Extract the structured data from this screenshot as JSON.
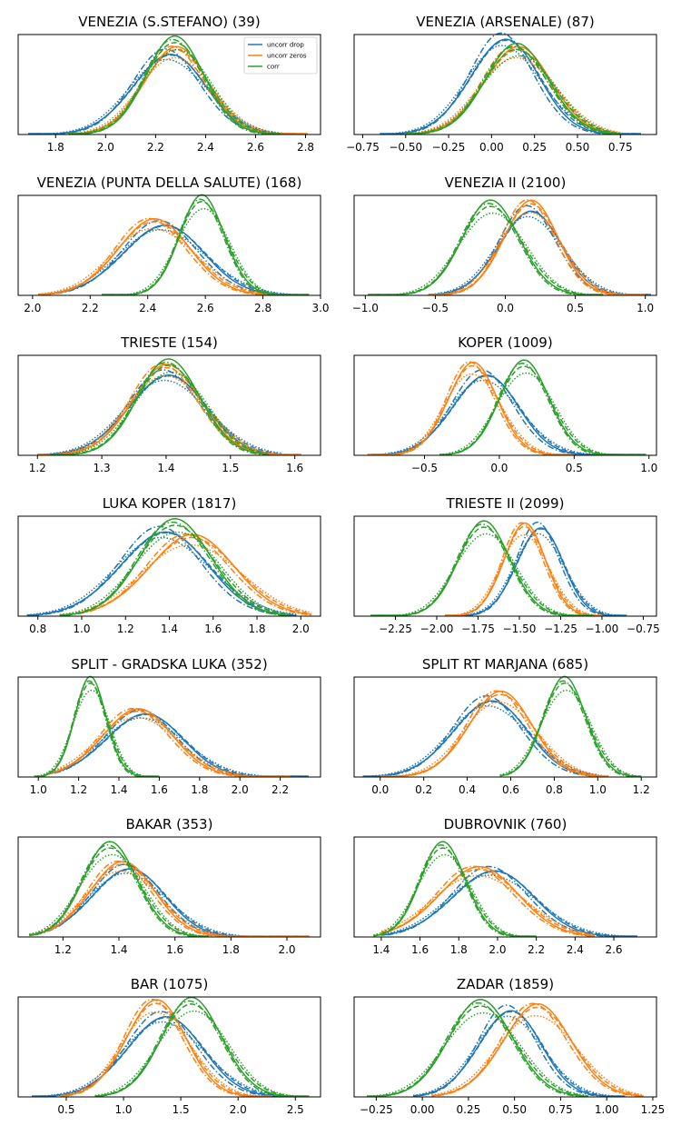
{
  "figure": {
    "legend": {
      "placement": "upper-right of first panel",
      "entries": [
        {
          "label": "uncorr drop",
          "color": "#1f77b4"
        },
        {
          "label": "uncorr zeros",
          "color": "#ff7f0e"
        },
        {
          "label": "corr",
          "color": "#2ca02c"
        }
      ]
    },
    "line_styles": [
      "solid",
      "dashed",
      "dashdot",
      "dotted"
    ]
  },
  "chart_data": [
    {
      "type": "line",
      "title": "VENEZIA (S.STEFANO) (39)",
      "xlim": [
        1.65,
        2.86
      ],
      "xticks": [
        1.8,
        2.0,
        2.2,
        2.4,
        2.6,
        2.8
      ],
      "xtick_labels": [
        "1.8",
        "2.0",
        "2.2",
        "2.4",
        "2.6",
        "2.8"
      ],
      "grid": false,
      "series": [
        {
          "name": "uncorr drop",
          "color": "#1f77b4",
          "peak_x": 2.25,
          "sd": 0.145,
          "height": 0.8,
          "range": [
            1.69,
            2.76
          ]
        },
        {
          "name": "uncorr zeros",
          "color": "#ff7f0e",
          "peak_x": 2.28,
          "sd": 0.13,
          "height": 0.85,
          "range": [
            1.85,
            2.81
          ]
        },
        {
          "name": "corr",
          "color": "#2ca02c",
          "peak_x": 2.28,
          "sd": 0.12,
          "height": 0.95,
          "range": [
            1.85,
            2.7
          ]
        }
      ]
    },
    {
      "type": "line",
      "title": "VENEZIA (ARSENALE) (87)",
      "xlim": [
        -0.8,
        0.96
      ],
      "xticks": [
        -0.75,
        -0.5,
        -0.25,
        0.0,
        0.25,
        0.5,
        0.75
      ],
      "xtick_labels": [
        "−0.75",
        "−0.50",
        "−0.25",
        "0.00",
        "0.25",
        "0.50",
        "0.75"
      ],
      "grid": false,
      "series": [
        {
          "name": "uncorr drop",
          "color": "#1f77b4",
          "peak_x": 0.07,
          "sd": 0.2,
          "height": 0.95,
          "range": [
            -0.65,
            0.87
          ]
        },
        {
          "name": "uncorr zeros",
          "color": "#ff7f0e",
          "peak_x": 0.15,
          "sd": 0.2,
          "height": 0.85,
          "range": [
            -0.5,
            0.75
          ]
        },
        {
          "name": "corr",
          "color": "#2ca02c",
          "peak_x": 0.15,
          "sd": 0.19,
          "height": 0.88,
          "range": [
            -0.5,
            0.75
          ]
        }
      ]
    },
    {
      "type": "line",
      "title": "VENEZIA (PUNTA DELLA SALUTE) (168)",
      "xlim": [
        1.95,
        3.0
      ],
      "xticks": [
        2.0,
        2.2,
        2.4,
        2.6,
        2.8,
        3.0
      ],
      "xtick_labels": [
        "2.0",
        "2.2",
        "2.4",
        "2.6",
        "2.8",
        "3.0"
      ],
      "grid": false,
      "series": [
        {
          "name": "uncorr drop",
          "color": "#1f77b4",
          "peak_x": 2.45,
          "sd": 0.14,
          "height": 0.7,
          "range": [
            2.02,
            2.9
          ]
        },
        {
          "name": "uncorr zeros",
          "color": "#ff7f0e",
          "peak_x": 2.42,
          "sd": 0.13,
          "height": 0.74,
          "range": [
            2.02,
            2.85
          ]
        },
        {
          "name": "corr",
          "color": "#2ca02c",
          "peak_x": 2.59,
          "sd": 0.08,
          "height": 0.97,
          "range": [
            2.24,
            2.96
          ]
        }
      ]
    },
    {
      "type": "line",
      "title": "VENEZIA II (2100)",
      "xlim": [
        -1.08,
        1.08
      ],
      "xticks": [
        -1.0,
        -0.5,
        0.0,
        0.5,
        1.0
      ],
      "xtick_labels": [
        "−1.0",
        "−0.5",
        "0.0",
        "0.5",
        "1.0"
      ],
      "grid": false,
      "series": [
        {
          "name": "uncorr drop",
          "color": "#1f77b4",
          "peak_x": 0.17,
          "sd": 0.22,
          "height": 0.84,
          "range": [
            -0.55,
            1.04
          ]
        },
        {
          "name": "uncorr zeros",
          "color": "#ff7f0e",
          "peak_x": 0.18,
          "sd": 0.2,
          "height": 0.92,
          "range": [
            -0.55,
            1.0
          ]
        },
        {
          "name": "corr",
          "color": "#2ca02c",
          "peak_x": -0.1,
          "sd": 0.21,
          "height": 0.92,
          "range": [
            -0.98,
            0.7
          ]
        }
      ]
    },
    {
      "type": "line",
      "title": "TRIESTE (154)",
      "xlim": [
        1.17,
        1.64
      ],
      "xticks": [
        1.2,
        1.3,
        1.4,
        1.5,
        1.6
      ],
      "xtick_labels": [
        "1.2",
        "1.3",
        "1.4",
        "1.5",
        "1.6"
      ],
      "grid": false,
      "series": [
        {
          "name": "uncorr drop",
          "color": "#1f77b4",
          "peak_x": 1.4,
          "sd": 0.06,
          "height": 0.8,
          "range": [
            1.2,
            1.58
          ]
        },
        {
          "name": "uncorr zeros",
          "color": "#ff7f0e",
          "peak_x": 1.4,
          "sd": 0.055,
          "height": 0.88,
          "range": [
            1.2,
            1.61
          ]
        },
        {
          "name": "corr",
          "color": "#2ca02c",
          "peak_x": 1.405,
          "sd": 0.05,
          "height": 0.93,
          "range": [
            1.22,
            1.56
          ]
        }
      ]
    },
    {
      "type": "line",
      "title": "KOPER (1009)",
      "xlim": [
        -0.97,
        1.05
      ],
      "xticks": [
        -0.5,
        0.0,
        0.5,
        1.0
      ],
      "xtick_labels": [
        "−0.5",
        "0.0",
        "0.5",
        "1.0"
      ],
      "grid": false,
      "series": [
        {
          "name": "uncorr drop",
          "color": "#1f77b4",
          "peak_x": -0.1,
          "sd": 0.22,
          "height": 0.8,
          "range": [
            -0.85,
            0.8
          ]
        },
        {
          "name": "uncorr zeros",
          "color": "#ff7f0e",
          "peak_x": -0.18,
          "sd": 0.17,
          "height": 0.9,
          "range": [
            -0.88,
            0.5
          ]
        },
        {
          "name": "corr",
          "color": "#2ca02c",
          "peak_x": 0.17,
          "sd": 0.17,
          "height": 0.92,
          "range": [
            -0.4,
            0.98
          ]
        }
      ]
    },
    {
      "type": "line",
      "title": "LUKA KOPER (1817)",
      "xlim": [
        0.71,
        2.09
      ],
      "xticks": [
        0.8,
        1.0,
        1.2,
        1.4,
        1.6,
        1.8,
        2.0
      ],
      "xtick_labels": [
        "0.8",
        "1.0",
        "1.2",
        "1.4",
        "1.6",
        "1.8",
        "2.0"
      ],
      "grid": false,
      "series": [
        {
          "name": "uncorr drop",
          "color": "#1f77b4",
          "peak_x": 1.37,
          "sd": 0.2,
          "height": 0.84,
          "range": [
            0.75,
            1.98
          ]
        },
        {
          "name": "uncorr zeros",
          "color": "#ff7f0e",
          "peak_x": 1.5,
          "sd": 0.2,
          "height": 0.79,
          "range": [
            0.9,
            2.05
          ]
        },
        {
          "name": "corr",
          "color": "#2ca02c",
          "peak_x": 1.43,
          "sd": 0.17,
          "height": 0.94,
          "range": [
            0.9,
            1.95
          ]
        }
      ]
    },
    {
      "type": "line",
      "title": "TRIESTE II (2099)",
      "xlim": [
        -2.5,
        -0.67
      ],
      "xticks": [
        -2.25,
        -2.0,
        -1.75,
        -1.5,
        -1.25,
        -1.0,
        -0.75
      ],
      "xtick_labels": [
        "−2.25",
        "−2.00",
        "−1.75",
        "−1.50",
        "−1.25",
        "−1.00",
        "−0.75"
      ],
      "grid": false,
      "series": [
        {
          "name": "uncorr drop",
          "color": "#1f77b4",
          "peak_x": -1.38,
          "sd": 0.14,
          "height": 0.88,
          "range": [
            -1.95,
            -0.85
          ]
        },
        {
          "name": "uncorr zeros",
          "color": "#ff7f0e",
          "peak_x": -1.47,
          "sd": 0.13,
          "height": 0.9,
          "range": [
            -1.95,
            -1.0
          ]
        },
        {
          "name": "corr",
          "color": "#2ca02c",
          "peak_x": -1.71,
          "sd": 0.16,
          "height": 0.92,
          "range": [
            -2.4,
            -1.05
          ]
        }
      ]
    },
    {
      "type": "line",
      "title": "SPLIT - GRADSKA LUKA (352)",
      "xlim": [
        0.9,
        2.4
      ],
      "xticks": [
        1.0,
        1.2,
        1.4,
        1.6,
        1.8,
        2.0,
        2.2
      ],
      "xtick_labels": [
        "1.0",
        "1.2",
        "1.4",
        "1.6",
        "1.8",
        "2.0",
        "2.2"
      ],
      "grid": false,
      "series": [
        {
          "name": "uncorr drop",
          "color": "#1f77b4",
          "peak_x": 1.52,
          "sd": 0.19,
          "height": 0.63,
          "range": [
            1.05,
            2.34
          ]
        },
        {
          "name": "uncorr zeros",
          "color": "#ff7f0e",
          "peak_x": 1.49,
          "sd": 0.18,
          "height": 0.66,
          "range": [
            1.05,
            2.25
          ]
        },
        {
          "name": "corr",
          "color": "#2ca02c",
          "peak_x": 1.26,
          "sd": 0.08,
          "height": 0.97,
          "range": [
            0.98,
            1.6
          ]
        }
      ]
    },
    {
      "type": "line",
      "title": "SPLIT RT MARJANA (685)",
      "xlim": [
        -0.12,
        1.27
      ],
      "xticks": [
        0.0,
        0.2,
        0.4,
        0.6,
        0.8,
        1.0,
        1.2
      ],
      "xtick_labels": [
        "0.0",
        "0.2",
        "0.4",
        "0.6",
        "0.8",
        "1.0",
        "1.2"
      ],
      "grid": false,
      "series": [
        {
          "name": "uncorr drop",
          "color": "#1f77b4",
          "peak_x": 0.5,
          "sd": 0.17,
          "height": 0.76,
          "range": [
            -0.08,
            1.0
          ]
        },
        {
          "name": "uncorr zeros",
          "color": "#ff7f0e",
          "peak_x": 0.55,
          "sd": 0.15,
          "height": 0.83,
          "range": [
            0.0,
            1.05
          ]
        },
        {
          "name": "corr",
          "color": "#2ca02c",
          "peak_x": 0.85,
          "sd": 0.1,
          "height": 0.97,
          "range": [
            0.55,
            1.2
          ]
        }
      ]
    },
    {
      "type": "line",
      "title": "BAKAR (353)",
      "xlim": [
        1.04,
        2.12
      ],
      "xticks": [
        1.2,
        1.4,
        1.6,
        1.8,
        2.0
      ],
      "xtick_labels": [
        "1.2",
        "1.4",
        "1.6",
        "1.8",
        "2.0"
      ],
      "grid": false,
      "series": [
        {
          "name": "uncorr drop",
          "color": "#1f77b4",
          "peak_x": 1.43,
          "sd": 0.13,
          "height": 0.68,
          "range": [
            1.08,
            1.85
          ]
        },
        {
          "name": "uncorr zeros",
          "color": "#ff7f0e",
          "peak_x": 1.41,
          "sd": 0.12,
          "height": 0.73,
          "range": [
            1.08,
            2.08
          ]
        },
        {
          "name": "corr",
          "color": "#2ca02c",
          "peak_x": 1.37,
          "sd": 0.1,
          "height": 0.92,
          "range": [
            1.08,
            1.72
          ]
        }
      ]
    },
    {
      "type": "line",
      "title": "DUBROVNIK (760)",
      "xlim": [
        1.26,
        2.82
      ],
      "xticks": [
        1.4,
        1.6,
        1.8,
        2.0,
        2.2,
        2.4,
        2.6
      ],
      "xtick_labels": [
        "1.4",
        "1.6",
        "1.8",
        "2.0",
        "2.2",
        "2.4",
        "2.6"
      ],
      "grid": false,
      "series": [
        {
          "name": "uncorr drop",
          "color": "#1f77b4",
          "peak_x": 1.97,
          "sd": 0.21,
          "height": 0.66,
          "range": [
            1.4,
            2.72
          ]
        },
        {
          "name": "uncorr zeros",
          "color": "#ff7f0e",
          "peak_x": 1.9,
          "sd": 0.21,
          "height": 0.68,
          "range": [
            1.4,
            2.5
          ]
        },
        {
          "name": "corr",
          "color": "#2ca02c",
          "peak_x": 1.72,
          "sd": 0.12,
          "height": 0.92,
          "range": [
            1.36,
            2.2
          ]
        }
      ]
    },
    {
      "type": "line",
      "title": "BAR (1075)",
      "xlim": [
        0.08,
        2.72
      ],
      "xticks": [
        0.5,
        1.0,
        1.5,
        2.0,
        2.5
      ],
      "xtick_labels": [
        "0.5",
        "1.0",
        "1.5",
        "2.0",
        "2.5"
      ],
      "grid": false,
      "series": [
        {
          "name": "uncorr drop",
          "color": "#1f77b4",
          "peak_x": 1.35,
          "sd": 0.33,
          "height": 0.8,
          "range": [
            0.2,
            2.4
          ]
        },
        {
          "name": "uncorr zeros",
          "color": "#ff7f0e",
          "peak_x": 1.28,
          "sd": 0.27,
          "height": 0.94,
          "range": [
            0.45,
            2.3
          ]
        },
        {
          "name": "corr",
          "color": "#2ca02c",
          "peak_x": 1.6,
          "sd": 0.27,
          "height": 0.96,
          "range": [
            0.75,
            2.62
          ]
        }
      ]
    },
    {
      "type": "line",
      "title": "ZADAR (1859)",
      "xlim": [
        -0.37,
        1.27
      ],
      "xticks": [
        -0.25,
        0.0,
        0.25,
        0.5,
        0.75,
        1.0,
        1.25
      ],
      "xtick_labels": [
        "−0.25",
        "0.00",
        "0.25",
        "0.50",
        "0.75",
        "1.00",
        "1.25"
      ],
      "grid": false,
      "series": [
        {
          "name": "uncorr drop",
          "color": "#1f77b4",
          "peak_x": 0.47,
          "sd": 0.17,
          "height": 0.86,
          "range": [
            -0.05,
            1.1
          ]
        },
        {
          "name": "uncorr zeros",
          "color": "#ff7f0e",
          "peak_x": 0.62,
          "sd": 0.19,
          "height": 0.9,
          "range": [
            0.05,
            1.2
          ]
        },
        {
          "name": "corr",
          "color": "#2ca02c",
          "peak_x": 0.32,
          "sd": 0.18,
          "height": 0.94,
          "range": [
            -0.3,
            0.9
          ]
        }
      ]
    }
  ]
}
